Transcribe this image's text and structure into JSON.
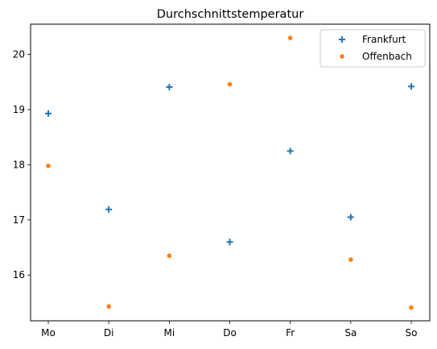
{
  "chart_data": {
    "type": "scatter",
    "title": "Durchschnittstemperatur",
    "xlabel": "",
    "ylabel": "",
    "categories": [
      "Mo",
      "Di",
      "Mi",
      "Do",
      "Fr",
      "Sa",
      "So"
    ],
    "ylim": [
      15.17,
      20.55
    ],
    "yticks": [
      16,
      17,
      18,
      19,
      20
    ],
    "grid": false,
    "legend_position": "top-right",
    "series": [
      {
        "name": "Frankfurt",
        "marker": "plus",
        "color": "#1f77b4",
        "values": [
          18.93,
          17.19,
          19.41,
          16.6,
          18.25,
          17.05,
          19.42
        ]
      },
      {
        "name": "Offenbach",
        "marker": "dot",
        "color": "#ff7f0e",
        "values": [
          17.98,
          15.43,
          16.35,
          19.46,
          20.3,
          16.28,
          15.41
        ]
      }
    ]
  }
}
